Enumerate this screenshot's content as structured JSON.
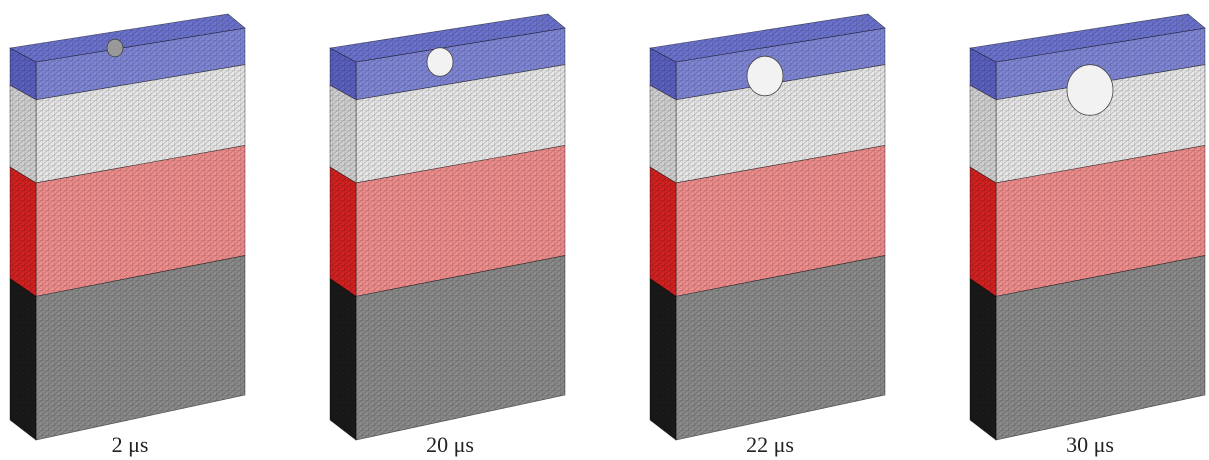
{
  "panels": [
    {
      "label": "2 μs"
    },
    {
      "label": "20 μs"
    },
    {
      "label": "22 μs"
    },
    {
      "label": "30 μs"
    }
  ]
}
